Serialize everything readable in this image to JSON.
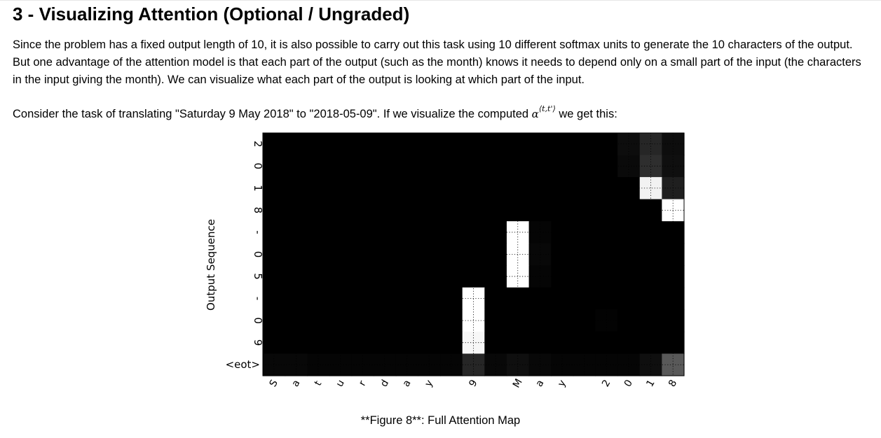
{
  "section": {
    "title": "3 - Visualizing Attention (Optional / Ungraded)"
  },
  "paragraphs": [
    "Since the problem has a fixed output length of 10, it is also possible to carry out this task using 10 different softmax units to generate the 10 characters of the output. But one advantage of the attention model is that each part of the output (such as the month) knows it needs to depend only on a small part of the input (the characters in the input giving the month). We can visualize what each part of the output is looking at which part of the input."
  ],
  "consider": {
    "before": "Consider the task of translating \"Saturday 9 May 2018\" to \"2018-05-09\". If we visualize the computed ",
    "symbol": "α",
    "superscript": "⟨t,t'⟩",
    "after": " we get this:"
  },
  "caption": {
    "text": "**Figure 8**: Full Attention Map"
  },
  "chart_data": {
    "type": "heatmap",
    "ylabel": "Output Sequence",
    "xlabel": "",
    "y_categories": [
      "2",
      "0",
      "1",
      "8",
      "-",
      "0",
      "5",
      "-",
      "0",
      "9",
      "<eot>"
    ],
    "x_categories": [
      "S",
      "a",
      "t",
      "u",
      "r",
      "d",
      "a",
      "y",
      " ",
      "9",
      " ",
      "M",
      "a",
      "y",
      " ",
      "2",
      "0",
      "1",
      "8"
    ],
    "grid": "dotted",
    "values": [
      [
        0,
        0,
        0,
        0,
        0,
        0,
        0,
        0,
        0,
        0,
        0,
        0,
        0,
        0,
        0,
        0,
        0.05,
        0.15,
        0.05
      ],
      [
        0,
        0,
        0,
        0,
        0,
        0,
        0,
        0,
        0,
        0,
        0,
        0,
        0,
        0,
        0,
        0,
        0.04,
        0.18,
        0.06
      ],
      [
        0,
        0,
        0,
        0,
        0,
        0,
        0,
        0,
        0,
        0,
        0,
        0,
        0,
        0,
        0,
        0,
        0,
        0.95,
        0.12
      ],
      [
        0,
        0,
        0,
        0,
        0,
        0,
        0,
        0,
        0,
        0,
        0,
        0,
        0,
        0,
        0,
        0,
        0,
        0,
        1.0
      ],
      [
        0,
        0,
        0,
        0,
        0,
        0,
        0,
        0,
        0,
        0,
        0,
        1.0,
        0.02,
        0,
        0,
        0,
        0,
        0,
        0
      ],
      [
        0,
        0,
        0,
        0,
        0,
        0,
        0,
        0,
        0,
        0,
        0,
        1.0,
        0.03,
        0,
        0,
        0,
        0,
        0,
        0
      ],
      [
        0,
        0,
        0,
        0,
        0,
        0,
        0,
        0,
        0,
        0,
        0,
        1.0,
        0.02,
        0,
        0,
        0,
        0,
        0,
        0
      ],
      [
        0,
        0,
        0,
        0,
        0,
        0,
        0,
        0,
        0,
        1.0,
        0,
        0,
        0,
        0,
        0,
        0,
        0,
        0,
        0
      ],
      [
        0,
        0,
        0,
        0,
        0,
        0,
        0,
        0,
        0,
        1.0,
        0,
        0,
        0,
        0,
        0,
        0.01,
        0,
        0,
        0
      ],
      [
        0,
        0,
        0,
        0,
        0,
        0,
        0,
        0,
        0,
        0.97,
        0,
        0,
        0,
        0,
        0,
        0,
        0,
        0,
        0
      ],
      [
        0.03,
        0.03,
        0.02,
        0.02,
        0.02,
        0.02,
        0.02,
        0.02,
        0.02,
        0.15,
        0.03,
        0.06,
        0.03,
        0.02,
        0.02,
        0.02,
        0.02,
        0.06,
        0.35
      ]
    ]
  }
}
